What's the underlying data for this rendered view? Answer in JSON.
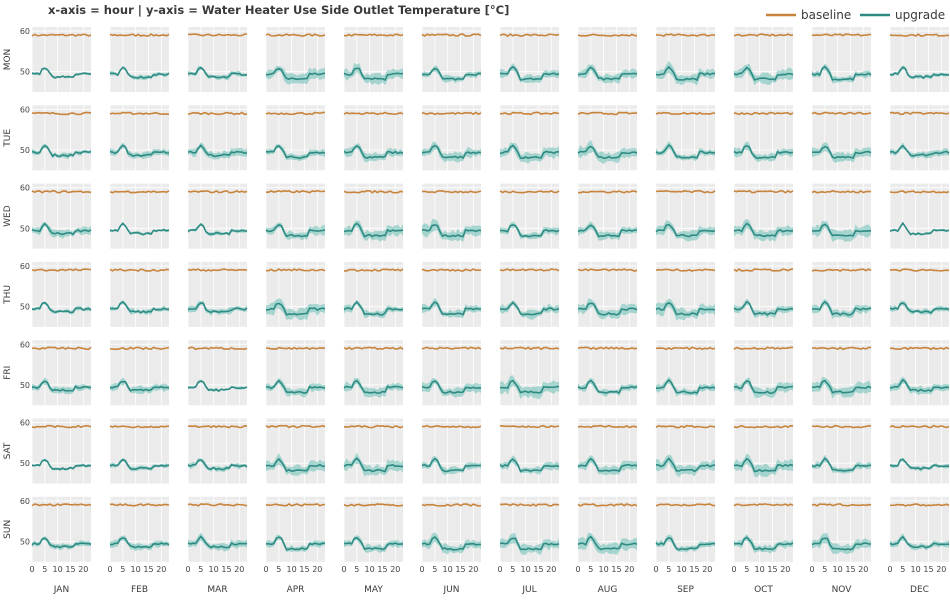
{
  "chart_data": {
    "type": "line",
    "title": "x-axis = hour | y-axis = Water Heater Use Side Outlet Temperature [°C]",
    "months": [
      "JAN",
      "FEB",
      "MAR",
      "APR",
      "MAY",
      "JUN",
      "JUL",
      "AUG",
      "SEP",
      "OCT",
      "NOV",
      "DEC"
    ],
    "days": [
      "MON",
      "TUE",
      "WED",
      "THU",
      "FRI",
      "SAT",
      "SUN"
    ],
    "x_ticks": [
      0,
      5,
      10,
      15,
      20
    ],
    "y_ticks": [
      50,
      60
    ],
    "x_range": [
      0,
      23
    ],
    "y_range": [
      45,
      61
    ],
    "grid": true,
    "legend_position": "top-right",
    "series": [
      {
        "name": "baseline",
        "color": "#c8843c",
        "approx_value": 59
      },
      {
        "name": "upgrade",
        "color": "#2e8b84",
        "band_color": "#6cc0b5",
        "approx_value": 49
      }
    ]
  }
}
